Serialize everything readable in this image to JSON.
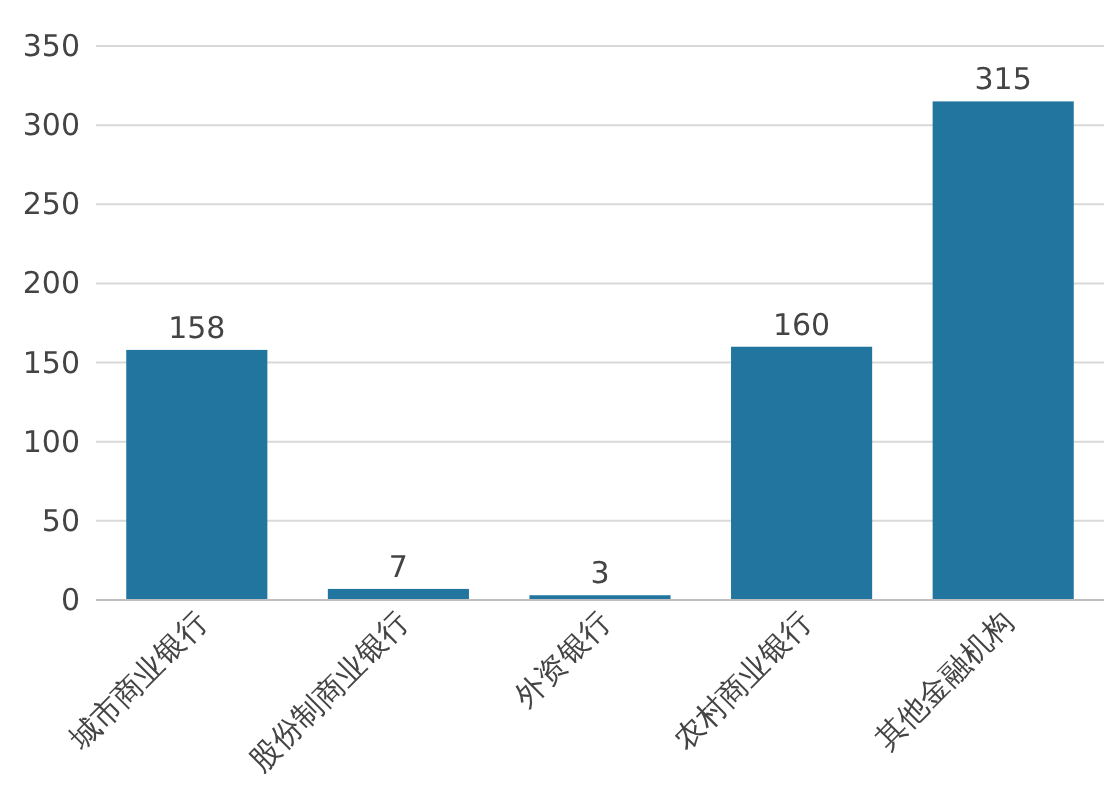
{
  "chart_data": {
    "type": "bar",
    "categories": [
      "城市商业银行",
      "股份制商业银行",
      "外资银行",
      "农村商业银行",
      "其他金融机构"
    ],
    "values": [
      158,
      7,
      3,
      160,
      315
    ],
    "color": "#21759f",
    "ylim": [
      0,
      350
    ],
    "yticks": [
      0,
      50,
      100,
      150,
      200,
      250,
      300,
      350
    ],
    "grid": "y",
    "data_labels": true
  }
}
